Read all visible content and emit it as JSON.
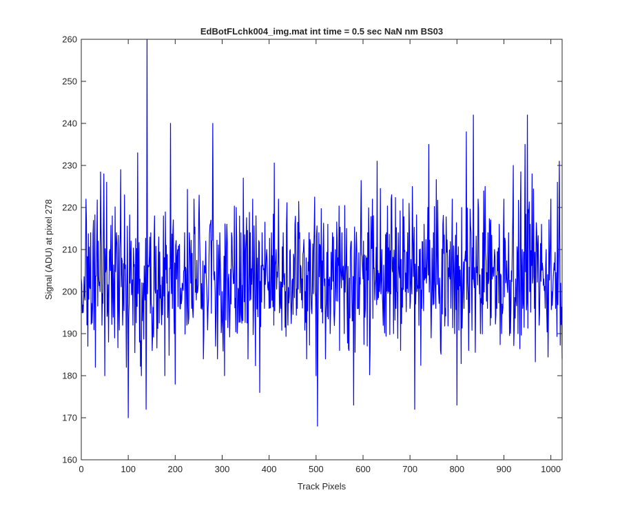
{
  "chart_data": {
    "type": "line",
    "title": "EdBotFLchk004_img.mat int time = 0.5 sec  NaN nm BS03",
    "xlabel": "Track Pixels",
    "ylabel": "Signal (ADU) at pixel 278",
    "xlim": [
      0,
      1024
    ],
    "ylim": [
      160,
      260
    ],
    "xticks": [
      0,
      100,
      200,
      300,
      400,
      500,
      600,
      700,
      800,
      900,
      1000
    ],
    "yticks": [
      160,
      170,
      180,
      190,
      200,
      210,
      220,
      230,
      240,
      250,
      260
    ],
    "grid": false,
    "legend": "none",
    "series": [
      {
        "color": "#0000ff",
        "noise": {
          "mean": 204,
          "sd": 8.5,
          "min": 168,
          "max": 260,
          "seed": 278
        },
        "anchors": [
          [
            0,
            203
          ],
          [
            5,
            198
          ],
          [
            10,
            222
          ],
          [
            14,
            187
          ],
          [
            20,
            214
          ],
          [
            24,
            196
          ],
          [
            30,
            182
          ],
          [
            36,
            212
          ],
          [
            40,
            200
          ],
          [
            44,
            192
          ],
          [
            48,
            228
          ],
          [
            50,
            180
          ],
          [
            54,
            226
          ],
          [
            58,
            188
          ],
          [
            62,
            205
          ],
          [
            66,
            218
          ],
          [
            70,
            200
          ],
          [
            75,
            214
          ],
          [
            80,
            196
          ],
          [
            84,
            229
          ],
          [
            88,
            192
          ],
          [
            92,
            223
          ],
          [
            96,
            182
          ],
          [
            100,
            170
          ],
          [
            104,
            202
          ],
          [
            110,
            192
          ],
          [
            115,
            200
          ],
          [
            120,
            233
          ],
          [
            124,
            188
          ],
          [
            128,
            180
          ],
          [
            132,
            202
          ],
          [
            136,
            198
          ],
          [
            138,
            172
          ],
          [
            140,
            260
          ],
          [
            144,
            206
          ],
          [
            148,
            214
          ],
          [
            152,
            190
          ],
          [
            156,
            218
          ],
          [
            160,
            198
          ],
          [
            165,
            213
          ],
          [
            170,
            196
          ],
          [
            175,
            218
          ],
          [
            178,
            180
          ],
          [
            182,
            202
          ],
          [
            186,
            200
          ],
          [
            190,
            240
          ],
          [
            194,
            196
          ],
          [
            198,
            190
          ],
          [
            200,
            178
          ],
          [
            205,
            210
          ],
          [
            210,
            196
          ],
          [
            215,
            202
          ],
          [
            220,
            214
          ],
          [
            225,
            192
          ],
          [
            230,
            214
          ],
          [
            235,
            196
          ],
          [
            240,
            222
          ],
          [
            245,
            198
          ],
          [
            250,
            217
          ],
          [
            255,
            196
          ],
          [
            260,
            184
          ],
          [
            265,
            212
          ],
          [
            270,
            196
          ],
          [
            276,
            217
          ],
          [
            280,
            240
          ],
          [
            285,
            200
          ],
          [
            290,
            184
          ],
          [
            295,
            214
          ],
          [
            300,
            200
          ],
          [
            305,
            180
          ],
          [
            310,
            216
          ],
          [
            315,
            196
          ],
          [
            320,
            214
          ],
          [
            325,
            202
          ],
          [
            330,
            220
          ],
          [
            335,
            200
          ],
          [
            340,
            214
          ],
          [
            345,
            227
          ],
          [
            350,
            210
          ],
          [
            355,
            184
          ],
          [
            360,
            214
          ],
          [
            365,
            222
          ],
          [
            370,
            196
          ],
          [
            375,
            208
          ],
          [
            380,
            176
          ],
          [
            385,
            214
          ],
          [
            390,
            196
          ],
          [
            395,
            210
          ],
          [
            400,
            196
          ],
          [
            405,
            214
          ],
          [
            410,
            192
          ],
          [
            415,
            210
          ],
          [
            420,
            222
          ],
          [
            425,
            196
          ],
          [
            430,
            214
          ],
          [
            435,
            200
          ],
          [
            440,
            192
          ],
          [
            445,
            210
          ],
          [
            450,
            203
          ],
          [
            455,
            216
          ],
          [
            460,
            196
          ],
          [
            465,
            214
          ],
          [
            470,
            203
          ],
          [
            475,
            208
          ],
          [
            480,
            184
          ],
          [
            485,
            214
          ],
          [
            490,
            196
          ],
          [
            495,
            210
          ],
          [
            500,
            180
          ],
          [
            503,
            168
          ],
          [
            506,
            214
          ],
          [
            510,
            196
          ],
          [
            515,
            210
          ],
          [
            520,
            184
          ],
          [
            525,
            216
          ],
          [
            530,
            190
          ],
          [
            535,
            214
          ],
          [
            540,
            196
          ],
          [
            545,
            212
          ],
          [
            550,
            186
          ],
          [
            555,
            214
          ],
          [
            560,
            190
          ],
          [
            565,
            215
          ],
          [
            570,
            186
          ],
          [
            575,
            212
          ],
          [
            580,
            173
          ],
          [
            585,
            210
          ],
          [
            590,
            196
          ],
          [
            595,
            216
          ],
          [
            600,
            203
          ],
          [
            605,
            196
          ],
          [
            610,
            214
          ],
          [
            615,
            186
          ],
          [
            620,
            222
          ],
          [
            625,
            198
          ],
          [
            630,
            231
          ],
          [
            635,
            200
          ],
          [
            640,
            210
          ],
          [
            645,
            196
          ],
          [
            650,
            214
          ],
          [
            655,
            200
          ],
          [
            660,
            222
          ],
          [
            665,
            190
          ],
          [
            670,
            196
          ],
          [
            675,
            214
          ],
          [
            680,
            186
          ],
          [
            685,
            222
          ],
          [
            690,
            200
          ],
          [
            695,
            214
          ],
          [
            700,
            196
          ],
          [
            705,
            225
          ],
          [
            710,
            172
          ],
          [
            715,
            200
          ],
          [
            720,
            210
          ],
          [
            725,
            196
          ],
          [
            730,
            216
          ],
          [
            735,
            202
          ],
          [
            740,
            235
          ],
          [
            745,
            189
          ],
          [
            750,
            214
          ],
          [
            755,
            196
          ],
          [
            760,
            210
          ],
          [
            765,
            186
          ],
          [
            770,
            216
          ],
          [
            775,
            196
          ],
          [
            780,
            208
          ],
          [
            785,
            203
          ],
          [
            790,
            222
          ],
          [
            795,
            190
          ],
          [
            800,
            173
          ],
          [
            805,
            206
          ],
          [
            810,
            220
          ],
          [
            815,
            196
          ],
          [
            820,
            238
          ],
          [
            825,
            186
          ],
          [
            830,
            214
          ],
          [
            835,
            242
          ],
          [
            840,
            200
          ],
          [
            845,
            222
          ],
          [
            850,
            190
          ],
          [
            855,
            214
          ],
          [
            860,
            225
          ],
          [
            865,
            196
          ],
          [
            870,
            216
          ],
          [
            875,
            203
          ],
          [
            880,
            210
          ],
          [
            885,
            196
          ],
          [
            890,
            216
          ],
          [
            895,
            190
          ],
          [
            900,
            222
          ],
          [
            905,
            203
          ],
          [
            910,
            214
          ],
          [
            915,
            196
          ],
          [
            920,
            230
          ],
          [
            925,
            203
          ],
          [
            930,
            190
          ],
          [
            935,
            218
          ],
          [
            940,
            196
          ],
          [
            945,
            235
          ],
          [
            950,
            242
          ],
          [
            955,
            200
          ],
          [
            960,
            228
          ],
          [
            965,
            196
          ],
          [
            970,
            214
          ],
          [
            975,
            192
          ],
          [
            980,
            216
          ],
          [
            985,
            203
          ],
          [
            990,
            210
          ],
          [
            995,
            196
          ],
          [
            1000,
            222
          ],
          [
            1005,
            203
          ],
          [
            1010,
            196
          ],
          [
            1014,
            226
          ],
          [
            1018,
            231
          ],
          [
            1021,
            202
          ],
          [
            1024,
            184
          ]
        ]
      }
    ]
  }
}
